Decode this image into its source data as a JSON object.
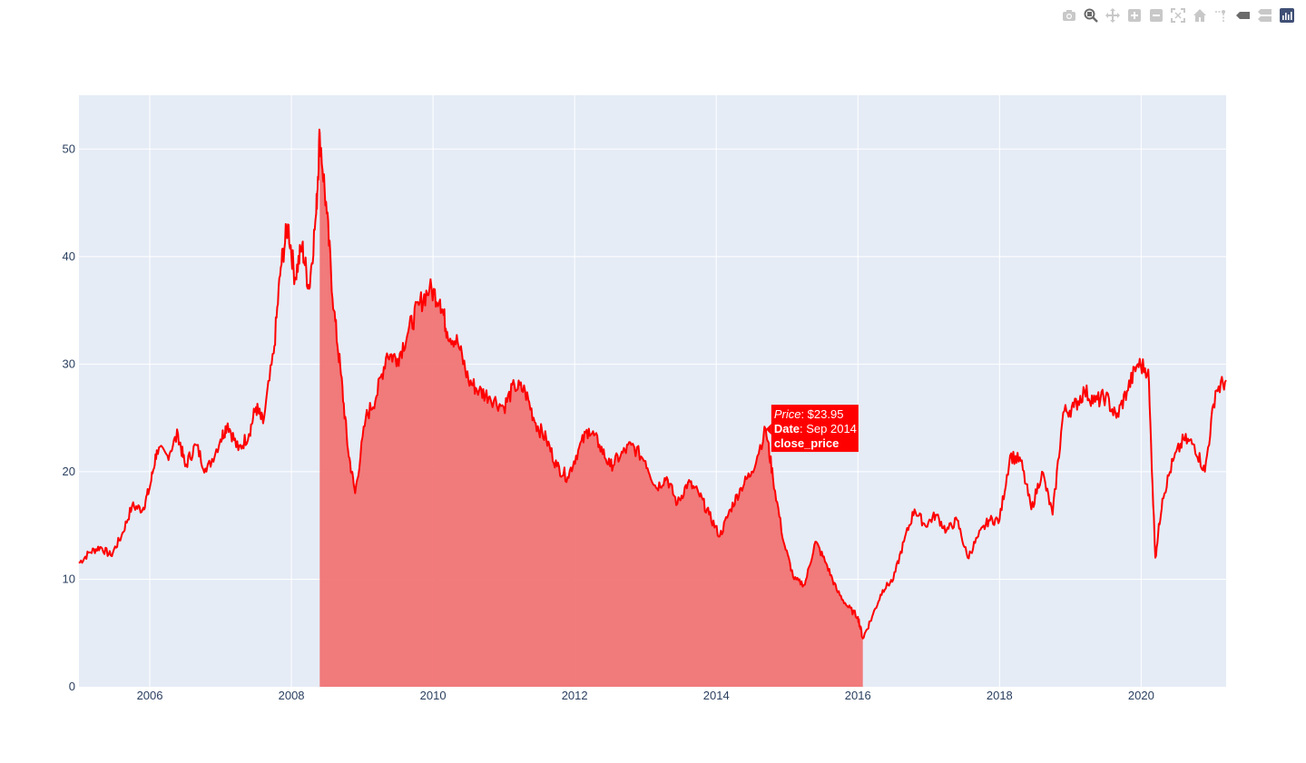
{
  "modebar": {
    "buttons": [
      {
        "name": "camera-icon"
      },
      {
        "name": "zoom-icon"
      },
      {
        "name": "pan-icon"
      },
      {
        "name": "zoom-in-icon"
      },
      {
        "name": "zoom-out-icon"
      },
      {
        "name": "autoscale-icon"
      },
      {
        "name": "home-icon"
      },
      {
        "name": "spike-lines-icon"
      },
      {
        "name": "hover-closest-icon"
      },
      {
        "name": "hover-compare-icon"
      },
      {
        "name": "plotly-logo-icon"
      }
    ]
  },
  "colors": {
    "plot_bg": "#e5ecf6",
    "grid": "#ffffff",
    "line": "#ff0000",
    "fill": "#f17474",
    "tooltip_bg": "#ff0000",
    "tooltip_text": "#ffffff",
    "tick_text": "#2a3f5f"
  },
  "tooltip": {
    "price_key": "Price",
    "price_value": ": $23.95",
    "date_key": "Date",
    "date_value": ": Sep 2014",
    "series": "close_price"
  },
  "chart_data": {
    "type": "line",
    "title": "",
    "xlabel": "",
    "ylabel": "",
    "xlim": [
      2005.0,
      2021.2
    ],
    "ylim": [
      0,
      55
    ],
    "xticks": [
      2006,
      2008,
      2010,
      2012,
      2014,
      2016,
      2018,
      2020
    ],
    "yticks": [
      0,
      10,
      20,
      30,
      40,
      50
    ],
    "grid": true,
    "legend": "none",
    "shaded_range": [
      2008.4,
      2016.07
    ],
    "hover_point": {
      "x": 2014.7,
      "y": 23.95
    },
    "series": [
      {
        "name": "close_price",
        "x": [
          2005.0,
          2005.15,
          2005.3,
          2005.45,
          2005.6,
          2005.75,
          2005.9,
          2006.0,
          2006.1,
          2006.25,
          2006.4,
          2006.5,
          2006.65,
          2006.8,
          2007.0,
          2007.1,
          2007.25,
          2007.4,
          2007.5,
          2007.6,
          2007.75,
          2007.85,
          2007.95,
          2008.05,
          2008.15,
          2008.25,
          2008.35,
          2008.4,
          2008.5,
          2008.6,
          2008.7,
          2008.8,
          2008.9,
          2009.05,
          2009.2,
          2009.35,
          2009.5,
          2009.65,
          2009.8,
          2009.95,
          2010.1,
          2010.2,
          2010.35,
          2010.5,
          2010.65,
          2010.8,
          2011.0,
          2011.15,
          2011.3,
          2011.45,
          2011.6,
          2011.75,
          2011.9,
          2012.05,
          2012.2,
          2012.35,
          2012.5,
          2012.65,
          2012.8,
          2013.0,
          2013.15,
          2013.3,
          2013.45,
          2013.6,
          2013.75,
          2013.9,
          2014.05,
          2014.2,
          2014.35,
          2014.5,
          2014.7,
          2014.8,
          2014.95,
          2015.1,
          2015.25,
          2015.4,
          2015.55,
          2015.7,
          2015.85,
          2016.0,
          2016.07,
          2016.2,
          2016.35,
          2016.5,
          2016.65,
          2016.8,
          2016.95,
          2017.1,
          2017.25,
          2017.4,
          2017.55,
          2017.7,
          2017.85,
          2018.0,
          2018.15,
          2018.3,
          2018.45,
          2018.6,
          2018.75,
          2018.9,
          2019.05,
          2019.2,
          2019.35,
          2019.5,
          2019.65,
          2019.8,
          2019.95,
          2020.1,
          2020.2,
          2020.3,
          2020.45,
          2020.6,
          2020.75,
          2020.9,
          2021.05,
          2021.2
        ],
        "values": [
          11.5,
          12.5,
          13.0,
          12.2,
          14.0,
          16.8,
          16.5,
          18.5,
          22.0,
          21.5,
          23.5,
          20.5,
          22.5,
          20.0,
          23.0,
          24.5,
          22.0,
          23.5,
          26.0,
          24.5,
          31.0,
          39.0,
          43.0,
          38.0,
          41.0,
          37.0,
          44.0,
          51.5,
          44.0,
          35.0,
          29.0,
          22.0,
          18.0,
          25.0,
          27.0,
          31.0,
          30.5,
          33.0,
          35.5,
          37.0,
          36.0,
          33.0,
          32.0,
          28.5,
          27.5,
          27.0,
          26.0,
          28.0,
          27.5,
          24.5,
          23.0,
          20.5,
          19.5,
          22.0,
          24.0,
          22.5,
          20.5,
          21.5,
          22.5,
          21.0,
          18.5,
          19.5,
          17.0,
          19.0,
          18.0,
          16.0,
          14.0,
          16.5,
          18.5,
          20.0,
          23.95,
          19.5,
          13.5,
          10.0,
          9.5,
          13.5,
          11.5,
          9.0,
          7.5,
          6.5,
          4.5,
          6.5,
          9.0,
          10.0,
          13.5,
          16.5,
          15.0,
          16.0,
          14.5,
          15.5,
          12.0,
          14.0,
          15.5,
          15.5,
          21.5,
          21.0,
          16.5,
          20.0,
          16.0,
          25.5,
          26.0,
          27.5,
          26.5,
          27.0,
          25.0,
          27.5,
          30.0,
          29.5,
          12.0,
          17.5,
          21.0,
          23.0,
          22.5,
          20.0,
          27.5,
          28.5
        ]
      }
    ]
  }
}
